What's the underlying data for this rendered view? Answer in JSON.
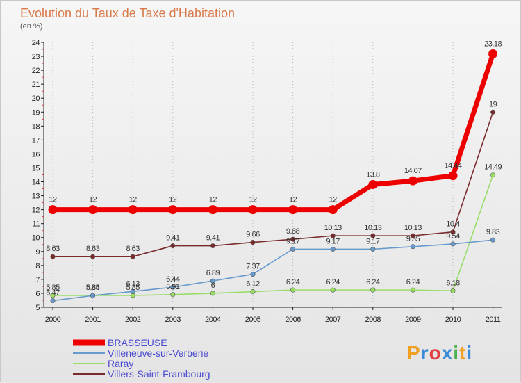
{
  "chart_data": {
    "type": "line",
    "title": "Evolution du Taux de Taxe d'Habitation",
    "subtitle": "(en %)",
    "x": [
      "2000",
      "2001",
      "2002",
      "2003",
      "2004",
      "2005",
      "2006",
      "2007",
      "2008",
      "2009",
      "2010",
      "2011"
    ],
    "ylim": [
      5,
      24
    ],
    "yticks": [
      5,
      6,
      7,
      8,
      9,
      10,
      11,
      12,
      13,
      14,
      15,
      16,
      17,
      18,
      19,
      20,
      21,
      22,
      23,
      24
    ],
    "grid": "dotted vertical",
    "legend_position": "bottom-left",
    "series": [
      {
        "name": "BRASSEUSE",
        "color": "#ee0000",
        "values": [
          12,
          12,
          12,
          12,
          12,
          12,
          12,
          12,
          13.8,
          14.07,
          14.44,
          23.18
        ],
        "labels": [
          "12",
          "12",
          "12",
          "12",
          "12",
          "12",
          "12",
          "12",
          "13.8",
          "14.07",
          "14.44",
          "23.18"
        ]
      },
      {
        "name": "Villeneuve-sur-Verberie",
        "color": "#6699cc",
        "values": [
          5.47,
          5.84,
          6.13,
          6.44,
          6.89,
          7.37,
          9.17,
          9.17,
          9.17,
          9.35,
          9.54,
          9.83
        ],
        "labels": [
          "5.47",
          "5.84",
          "6.13",
          "6.44",
          "6.89",
          "7.37",
          "9.17",
          "9.17",
          "9.17",
          "9.35",
          "9.54",
          "9.83"
        ]
      },
      {
        "name": "Raray",
        "color": "#99dd66",
        "values": [
          5.85,
          5.85,
          5.85,
          5.91,
          6,
          6.12,
          6.24,
          6.24,
          6.24,
          6.24,
          6.18,
          14.49
        ],
        "labels": [
          "5.85",
          "5.85",
          "5.85",
          "5.91",
          "6",
          "6.12",
          "6.24",
          "6.24",
          "6.24",
          "6.24",
          "6.18",
          "14.49"
        ]
      },
      {
        "name": "Villers-Saint-Frambourg",
        "color": "#7a2a2a",
        "values": [
          8.63,
          8.63,
          8.63,
          9.41,
          9.41,
          9.66,
          9.88,
          10.13,
          10.13,
          10.13,
          10.4,
          19
        ],
        "labels": [
          "8.63",
          "8.63",
          "8.63",
          "9.41",
          "9.41",
          "9.66",
          "9.88",
          "10.13",
          "10.13",
          "10.13",
          "10.4",
          "19"
        ]
      }
    ]
  },
  "logo": {
    "text": "Proxiti",
    "colors": [
      "#f0a020",
      "#3a8ad8",
      "#e04040",
      "#3a8ad8",
      "#50b050",
      "#f0a020",
      "#3a8ad8"
    ]
  }
}
